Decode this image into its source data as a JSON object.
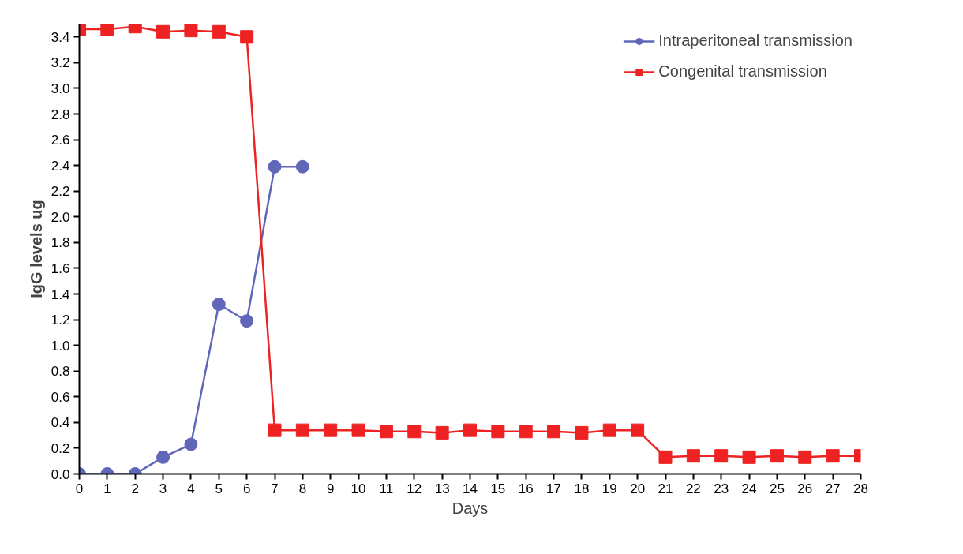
{
  "chart_data": {
    "type": "line",
    "xlabel": "Days",
    "ylabel": "IgG levels ug",
    "x": [
      0,
      1,
      2,
      3,
      4,
      5,
      6,
      7,
      8,
      9,
      10,
      11,
      12,
      13,
      14,
      15,
      16,
      17,
      18,
      19,
      20,
      21,
      22,
      23,
      24,
      25,
      26,
      27,
      28
    ],
    "series": [
      {
        "name": "Intraperitoneal transmission",
        "color": "#6066b8",
        "marker": "circle",
        "x": [
          0,
          1,
          2,
          3,
          4,
          5,
          6,
          7,
          8
        ],
        "values": [
          0,
          0,
          0,
          0.13,
          0.23,
          1.32,
          1.19,
          2.39,
          2.39
        ]
      },
      {
        "name": "Congenital transmission",
        "color": "#ee2222",
        "marker": "square",
        "values": [
          3.46,
          3.46,
          3.48,
          3.44,
          3.45,
          3.44,
          3.4,
          0.34,
          0.34,
          0.34,
          0.34,
          0.33,
          0.33,
          0.32,
          0.34,
          0.33,
          0.33,
          0.33,
          0.32,
          0.34,
          0.34,
          0.13,
          0.14,
          0.14,
          0.13,
          0.14,
          0.13,
          0.14,
          0.14
        ]
      }
    ],
    "xlim": [
      0,
      28
    ],
    "ylim": [
      0,
      3.5
    ],
    "xticks": [
      0,
      1,
      2,
      3,
      4,
      5,
      6,
      7,
      8,
      9,
      10,
      11,
      12,
      13,
      14,
      15,
      16,
      17,
      18,
      19,
      20,
      21,
      22,
      23,
      24,
      25,
      26,
      27,
      28
    ],
    "yticks": [
      {
        "value": 0,
        "label": "0.0"
      },
      {
        "value": 0.2,
        "label": "0.2"
      },
      {
        "value": 0.4,
        "label": "0.4"
      },
      {
        "value": 0.6,
        "label": "0.6"
      },
      {
        "value": 0.8,
        "label": "0.8"
      },
      {
        "value": 1.0,
        "label": "1.0"
      },
      {
        "value": 1.2,
        "label": "1.2"
      },
      {
        "value": 1.4,
        "label": "1.4"
      },
      {
        "value": 1.6,
        "label": "1.6"
      },
      {
        "value": 1.8,
        "label": "1.8"
      },
      {
        "value": 2.0,
        "label": "2.0"
      },
      {
        "value": 2.2,
        "label": "2.2"
      },
      {
        "value": 2.4,
        "label": "2.4"
      },
      {
        "value": 2.6,
        "label": "2.6"
      },
      {
        "value": 2.8,
        "label": "2.8"
      },
      {
        "value": 3.0,
        "label": "3.0"
      },
      {
        "value": 3.2,
        "label": "3.2"
      },
      {
        "value": 3.4,
        "label": "3.4"
      }
    ],
    "grid": false,
    "legend": "top right",
    "line_style": "solid"
  }
}
